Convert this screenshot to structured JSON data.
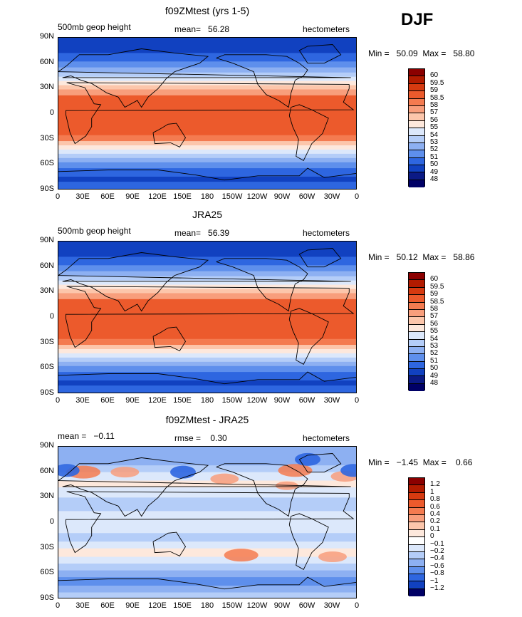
{
  "season": "DJF",
  "panels": [
    {
      "title": "f09ZMtest (yrs 1-5)",
      "left": "500mb geop height",
      "center": "mean=   56.28",
      "right": "hectometers",
      "minmax": "Min =   50.09  Max =   58.80",
      "levels": [
        "60",
        "59.5",
        "59",
        "58.5",
        "58",
        "57",
        "56",
        "55",
        "54",
        "53",
        "52",
        "51",
        "50",
        "49",
        "48"
      ],
      "type": "full"
    },
    {
      "title": "JRA25",
      "left": "500mb geop height",
      "center": "mean=   56.39",
      "right": "hectometers",
      "minmax": "Min =   50.12  Max =   58.86",
      "levels": [
        "60",
        "59.5",
        "59",
        "58.5",
        "58",
        "57",
        "56",
        "55",
        "54",
        "53",
        "52",
        "51",
        "50",
        "49",
        "48"
      ],
      "type": "full"
    },
    {
      "title": "f09ZMtest - JRA25",
      "left": "mean =   −0.11",
      "center": "rmse =    0.30",
      "right": "hectometers",
      "minmax": "Min =   −1.45  Max =    0.66",
      "levels": [
        "1.2",
        "1",
        "0.8",
        "0.6",
        "0.4",
        "0.2",
        "0.1",
        "0",
        "−0.1",
        "−0.2",
        "−0.4",
        "−0.6",
        "−0.8",
        "−1",
        "−1.2"
      ],
      "type": "diff"
    }
  ],
  "lat_labels": [
    "90N",
    "60N",
    "30N",
    "0",
    "30S",
    "60S",
    "90S"
  ],
  "lon_labels": [
    "0",
    "30E",
    "60E",
    "90E",
    "120E",
    "150E",
    "180",
    "150W",
    "120W",
    "90W",
    "60W",
    "30W",
    "0"
  ],
  "colors": {
    "full": [
      "#8b0000",
      "#b21b00",
      "#d63a10",
      "#ec5a2c",
      "#f47b50",
      "#f89e7c",
      "#fcc6ab",
      "#fde8dc",
      "#dce8fb",
      "#b4cdf8",
      "#8db0f2",
      "#5e8fec",
      "#2e66e0",
      "#1141c0",
      "#0b1a85",
      "#000066"
    ],
    "diff": [
      "#8b0000",
      "#b21b00",
      "#d63a10",
      "#ec5a2c",
      "#f47b50",
      "#f89e7c",
      "#fcc6ab",
      "#fde8dc",
      "#ffffff",
      "#dce8fb",
      "#b4cdf8",
      "#8db0f2",
      "#5e8fec",
      "#2e66e0",
      "#1141c0",
      "#000066"
    ]
  }
}
